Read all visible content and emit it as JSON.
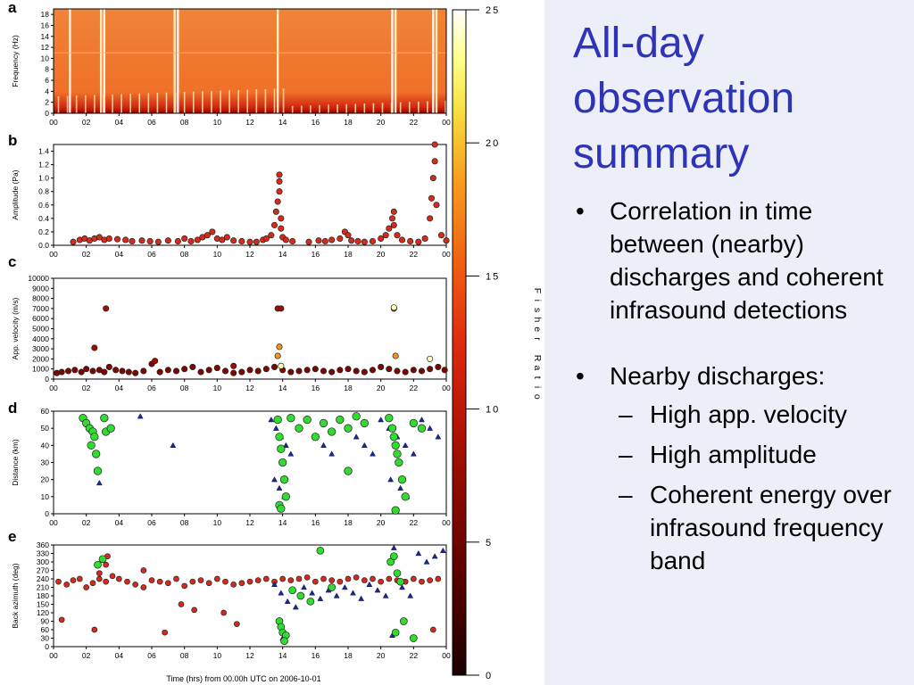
{
  "slide": {
    "title": "All-day observation summary",
    "bullets": [
      {
        "text": "Correlation in time between (nearby) discharges and coherent infrasound detections"
      },
      {
        "text": "Nearby discharges:",
        "subs": [
          "High app. velocity",
          "High amplitude",
          "Coherent energy over infrasound frequency band"
        ]
      }
    ]
  },
  "colors": {
    "title": "#2e34b8",
    "panel_background": "#eceef8",
    "detection_red": "#d62a1a",
    "nearby_discharge_green": "#2fdc2f",
    "discharge_triangle": "#1a2a8c"
  },
  "figure": {
    "x_axis_title": "Time (hrs) from 00.00h UTC on 2006-10-01",
    "colorbar": {
      "label": "Fisher Ratio",
      "ticks": [
        "0",
        "5",
        "10",
        "15",
        "20",
        "25"
      ],
      "range": [
        0,
        25
      ]
    }
  },
  "chart_data": [
    {
      "panel": "a",
      "type": "heatmap",
      "ylabel": "Frequency (Hz)",
      "xlim": [
        0,
        24
      ],
      "ylim": [
        0,
        19
      ],
      "xticks": [
        "00",
        "02",
        "04",
        "06",
        "08",
        "10",
        "12",
        "14",
        "16",
        "18",
        "20",
        "22",
        "00"
      ],
      "yticks": [
        "0",
        "2",
        "4",
        "6",
        "8",
        "10",
        "12",
        "14",
        "16",
        "18"
      ],
      "notes": "Spectrogram, mostly orange-red (Fisher ratio ~10-12) with bright white/yellow columns around 01, 03, 07.5, 13.7, 20.8, 23.3 h"
    },
    {
      "panel": "b",
      "type": "scatter",
      "ylabel": "Amplitude (Pa)",
      "xlim": [
        0,
        24
      ],
      "ylim": [
        0,
        1.5
      ],
      "xticks": [
        "00",
        "02",
        "04",
        "06",
        "08",
        "10",
        "12",
        "14",
        "16",
        "18",
        "20",
        "22",
        "00"
      ],
      "yticks": [
        "0.0",
        "0.2",
        "0.4",
        "0.6",
        "0.8",
        "1.0",
        "1.2",
        "1.4"
      ],
      "x": [
        1.2,
        1.6,
        1.9,
        2.2,
        2.5,
        2.8,
        3.1,
        3.4,
        3.9,
        4.4,
        4.8,
        5.4,
        5.9,
        6.4,
        7.0,
        7.6,
        8.0,
        8.4,
        8.8,
        9.1,
        9.4,
        9.7,
        10.0,
        10.3,
        10.6,
        11.0,
        11.5,
        12.0,
        12.4,
        12.8,
        13.0,
        13.3,
        13.5,
        13.6,
        13.7,
        13.8,
        13.8,
        13.8,
        13.9,
        13.9,
        14.0,
        14.2,
        14.6,
        15.6,
        16.2,
        16.6,
        17.0,
        17.5,
        17.8,
        18.0,
        18.2,
        18.6,
        19.0,
        19.5,
        20.0,
        20.3,
        20.5,
        20.7,
        20.8,
        20.8,
        21.0,
        21.3,
        21.8,
        22.3,
        22.7,
        23.0,
        23.1,
        23.2,
        23.3,
        23.3,
        23.4,
        23.7,
        24.0
      ],
      "y": [
        0.05,
        0.08,
        0.1,
        0.07,
        0.1,
        0.12,
        0.08,
        0.1,
        0.09,
        0.08,
        0.06,
        0.07,
        0.06,
        0.05,
        0.07,
        0.06,
        0.1,
        0.06,
        0.08,
        0.12,
        0.15,
        0.2,
        0.1,
        0.08,
        0.12,
        0.07,
        0.06,
        0.05,
        0.05,
        0.08,
        0.1,
        0.15,
        0.3,
        0.5,
        0.65,
        0.8,
        1.05,
        0.95,
        0.4,
        0.25,
        0.12,
        0.08,
        0.06,
        0.05,
        0.07,
        0.06,
        0.08,
        0.1,
        0.2,
        0.15,
        0.07,
        0.06,
        0.05,
        0.06,
        0.1,
        0.15,
        0.25,
        0.4,
        0.5,
        0.3,
        0.15,
        0.08,
        0.06,
        0.05,
        0.1,
        0.4,
        0.7,
        1.0,
        1.25,
        1.5,
        0.6,
        0.15,
        0.07
      ]
    },
    {
      "panel": "c",
      "type": "scatter",
      "ylabel": "App. velocity (m/s)",
      "xlim": [
        0,
        24
      ],
      "ylim": [
        0,
        10000
      ],
      "xticks": [
        "00",
        "02",
        "04",
        "06",
        "08",
        "10",
        "12",
        "14",
        "16",
        "18",
        "20",
        "22",
        "00"
      ],
      "yticks": [
        "0",
        "1000",
        "2000",
        "3000",
        "4000",
        "5000",
        "6000",
        "7000",
        "8000",
        "9000",
        "10000"
      ],
      "x": [
        0.2,
        0.5,
        0.9,
        1.3,
        1.7,
        2.0,
        2.4,
        2.8,
        3.1,
        3.4,
        3.8,
        4.2,
        4.6,
        5.0,
        5.5,
        6.0,
        6.5,
        7.0,
        7.5,
        8.0,
        8.5,
        9.0,
        9.5,
        10.0,
        10.5,
        11.0,
        11.5,
        12.0,
        12.5,
        13.0,
        13.5,
        14.0,
        14.5,
        15.0,
        15.5,
        16.0,
        16.5,
        17.0,
        17.5,
        18.0,
        18.5,
        19.0,
        19.5,
        20.0,
        20.5,
        21.0,
        21.5,
        22.0,
        22.5,
        23.0,
        23.5,
        23.9,
        2.5,
        3.2,
        13.7,
        13.9,
        20.8,
        6.2,
        11.0,
        13.7,
        13.8,
        20.9,
        13.9,
        23.0,
        20.8
      ],
      "y": [
        600,
        700,
        800,
        900,
        700,
        1000,
        800,
        900,
        700,
        1200,
        900,
        800,
        700,
        600,
        800,
        1500,
        700,
        900,
        800,
        1000,
        1200,
        700,
        900,
        1100,
        800,
        600,
        700,
        900,
        800,
        1000,
        1200,
        900,
        700,
        800,
        900,
        1000,
        800,
        700,
        900,
        1000,
        800,
        700,
        900,
        1200,
        1000,
        800,
        700,
        900,
        800,
        1000,
        1200,
        900,
        3100,
        7000,
        7000,
        7000,
        7000,
        1800,
        1300,
        2300,
        3200,
        2300,
        1300,
        2000,
        7100
      ],
      "fisher": [
        6,
        6,
        6,
        6,
        6,
        6,
        6,
        6,
        6,
        6,
        6,
        6,
        6,
        6,
        6,
        6,
        6,
        6,
        6,
        6,
        6,
        6,
        6,
        6,
        6,
        6,
        6,
        6,
        6,
        6,
        6,
        6,
        6,
        6,
        6,
        6,
        6,
        6,
        6,
        6,
        6,
        6,
        6,
        6,
        6,
        6,
        6,
        6,
        6,
        6,
        6,
        6,
        8,
        8,
        8,
        8,
        8,
        8,
        8,
        18,
        18,
        18,
        24,
        24,
        24
      ]
    },
    {
      "panel": "d",
      "type": "scatter",
      "ylabel": "Distance (km)",
      "xlim": [
        0,
        24
      ],
      "ylim": [
        0,
        60
      ],
      "xticks": [
        "00",
        "02",
        "04",
        "06",
        "08",
        "10",
        "12",
        "14",
        "16",
        "18",
        "20",
        "22",
        "00"
      ],
      "yticks": [
        "0",
        "10",
        "20",
        "30",
        "40",
        "50",
        "60"
      ],
      "series": [
        {
          "marker": "circle",
          "color": "#2fdc2f",
          "x": [
            1.8,
            2.0,
            2.2,
            2.4,
            2.5,
            2.3,
            2.6,
            2.7,
            3.1,
            3.2,
            3.5,
            13.7,
            13.8,
            13.9,
            14.0,
            14.1,
            14.2,
            14.5,
            15.0,
            15.5,
            16.0,
            16.5,
            17.0,
            17.5,
            18.0,
            18.5,
            19.0,
            20.5,
            20.7,
            20.8,
            20.9,
            21.0,
            21.1,
            21.3,
            21.5,
            22.0,
            22.5,
            13.8,
            13.9,
            20.9,
            18.0
          ],
          "y": [
            56,
            53,
            50,
            48,
            45,
            40,
            35,
            25,
            56,
            48,
            50,
            55,
            45,
            38,
            30,
            20,
            10,
            56,
            50,
            55,
            45,
            53,
            48,
            55,
            50,
            57,
            53,
            56,
            50,
            45,
            40,
            35,
            30,
            20,
            10,
            53,
            50,
            5,
            3,
            2,
            25
          ]
        },
        {
          "marker": "triangle",
          "color": "#1a2a8c",
          "x": [
            2.8,
            5.3,
            7.3,
            13.3,
            13.6,
            13.9,
            14.2,
            14.5,
            15.0,
            15.5,
            16.0,
            16.5,
            17.0,
            17.5,
            18.0,
            18.5,
            19.0,
            19.5,
            20.0,
            20.5,
            21.0,
            21.5,
            22.0,
            22.5,
            23.0,
            23.5,
            13.5,
            13.8,
            14.1,
            20.6,
            21.2,
            21.6
          ],
          "y": [
            18,
            57,
            40,
            55,
            50,
            45,
            40,
            35,
            50,
            55,
            45,
            40,
            35,
            55,
            50,
            45,
            40,
            35,
            55,
            50,
            45,
            40,
            35,
            55,
            50,
            45,
            20,
            15,
            10,
            20,
            15,
            10
          ]
        }
      ]
    },
    {
      "panel": "e",
      "type": "scatter",
      "ylabel": "Back azimuth (deg)",
      "xlabel": "Time (hrs) from 00.00h UTC on 2006-10-01",
      "xlim": [
        0,
        24
      ],
      "ylim": [
        0,
        360
      ],
      "xticks": [
        "00",
        "02",
        "04",
        "06",
        "08",
        "10",
        "12",
        "14",
        "16",
        "18",
        "20",
        "22",
        "00"
      ],
      "yticks": [
        "0",
        "30",
        "60",
        "90",
        "120",
        "150",
        "180",
        "210",
        "240",
        "270",
        "300",
        "330",
        "360"
      ],
      "series": [
        {
          "marker": "circle",
          "color": "#d62a1a",
          "x": [
            0.3,
            0.8,
            1.2,
            1.6,
            2.0,
            2.4,
            2.8,
            3.2,
            3.6,
            4.0,
            4.5,
            5.0,
            5.5,
            6.0,
            6.5,
            7.0,
            7.5,
            8.0,
            8.5,
            9.0,
            9.5,
            10.0,
            10.5,
            11.0,
            11.5,
            12.0,
            12.5,
            13.0,
            13.5,
            14.0,
            14.5,
            15.0,
            15.5,
            16.0,
            16.5,
            17.0,
            17.5,
            18.0,
            18.5,
            19.0,
            19.5,
            20.0,
            20.5,
            21.0,
            21.5,
            22.0,
            22.5,
            23.0,
            23.5,
            0.5,
            2.5,
            3.3,
            5.5,
            7.8,
            8.6,
            10.4,
            3.2,
            2.8,
            23.2,
            11.2,
            6.8
          ],
          "y": [
            230,
            220,
            235,
            240,
            210,
            225,
            240,
            230,
            250,
            240,
            230,
            220,
            210,
            235,
            230,
            225,
            240,
            215,
            230,
            235,
            225,
            240,
            230,
            220,
            225,
            230,
            235,
            240,
            230,
            240,
            235,
            240,
            245,
            230,
            240,
            235,
            230,
            240,
            245,
            235,
            240,
            230,
            240,
            235,
            230,
            240,
            230,
            235,
            240,
            95,
            60,
            320,
            270,
            150,
            130,
            120,
            290,
            260,
            60,
            80,
            50
          ]
        },
        {
          "marker": "circle",
          "color": "#2fdc2f",
          "x": [
            2.7,
            3.0,
            13.8,
            13.9,
            14.0,
            14.2,
            14.6,
            15.1,
            15.7,
            16.3,
            17.0,
            20.6,
            20.8,
            21.0,
            21.2,
            21.4,
            22.0,
            14.1,
            20.9
          ],
          "y": [
            290,
            310,
            90,
            70,
            50,
            40,
            200,
            180,
            160,
            340,
            210,
            300,
            320,
            260,
            230,
            90,
            30,
            20,
            50
          ]
        },
        {
          "marker": "triangle",
          "color": "#1a2a8c",
          "x": [
            13.5,
            13.9,
            14.3,
            14.8,
            15.3,
            15.8,
            16.3,
            16.8,
            17.3,
            17.8,
            18.3,
            18.8,
            19.3,
            19.8,
            20.3,
            20.8,
            21.3,
            21.8,
            22.3,
            22.8,
            23.3,
            23.8,
            14.0,
            20.7
          ],
          "y": [
            220,
            190,
            160,
            140,
            210,
            190,
            170,
            200,
            180,
            210,
            190,
            170,
            220,
            200,
            180,
            350,
            210,
            180,
            330,
            300,
            320,
            340,
            30,
            40
          ]
        }
      ]
    }
  ]
}
